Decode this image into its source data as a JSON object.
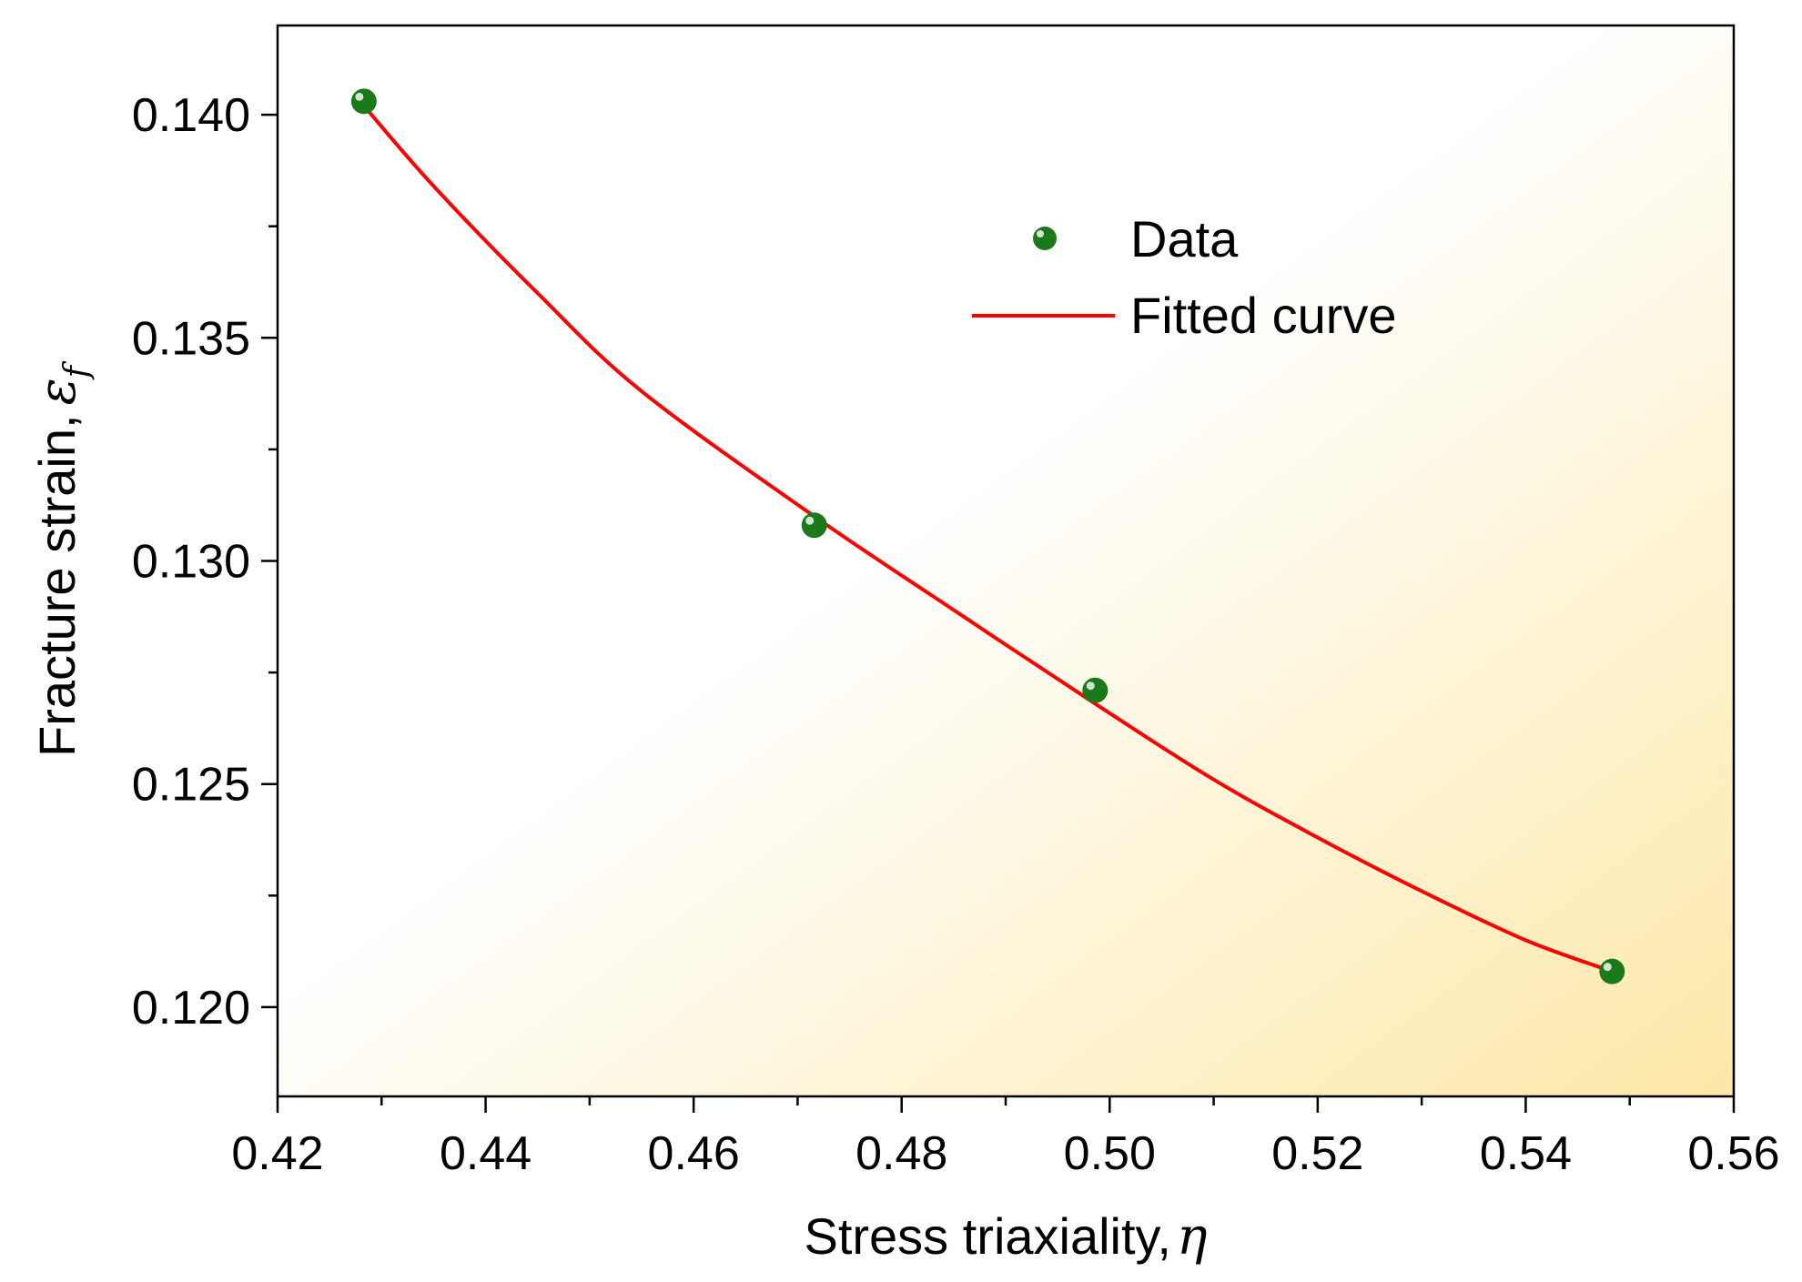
{
  "chart_data": {
    "type": "scatter",
    "xlabel": "Stress triaxiality,",
    "xlabel_symbol": "η",
    "ylabel": "Fracture strain,",
    "ylabel_symbol": "ε",
    "ylabel_symbol_sub": "f",
    "xlim": [
      0.42,
      0.56
    ],
    "ylim": [
      0.118,
      0.142
    ],
    "x_ticks": [
      0.42,
      0.44,
      0.46,
      0.48,
      0.5,
      0.52,
      0.54,
      0.56
    ],
    "x_tick_labels": [
      "0.42",
      "0.44",
      "0.46",
      "0.48",
      "0.50",
      "0.52",
      "0.54",
      "0.56"
    ],
    "y_ticks": [
      0.12,
      0.125,
      0.13,
      0.135,
      0.14
    ],
    "y_tick_labels": [
      "0.120",
      "0.125",
      "0.130",
      "0.135",
      "0.140"
    ],
    "grid": false,
    "legend_position": "top-right",
    "background_gradient": [
      "#ffffff",
      "#fde8a8"
    ],
    "series": [
      {
        "name": "Data",
        "kind": "scatter",
        "color": "#1a7a1a",
        "x": [
          0.4283,
          0.4716,
          0.4986,
          0.5483
        ],
        "y": [
          0.1403,
          0.1308,
          0.1271,
          0.1208
        ]
      },
      {
        "name": "Fitted curve",
        "kind": "line",
        "color": "#ff0000",
        "x": [
          0.4283,
          0.435,
          0.445,
          0.455,
          0.4716,
          0.485,
          0.4986,
          0.51,
          0.52,
          0.53,
          0.54,
          0.5483
        ],
        "y": [
          0.1402,
          0.1384,
          0.136,
          0.1338,
          0.131,
          0.1289,
          0.1268,
          0.1251,
          0.1238,
          0.1226,
          0.1215,
          0.1208
        ]
      }
    ]
  }
}
